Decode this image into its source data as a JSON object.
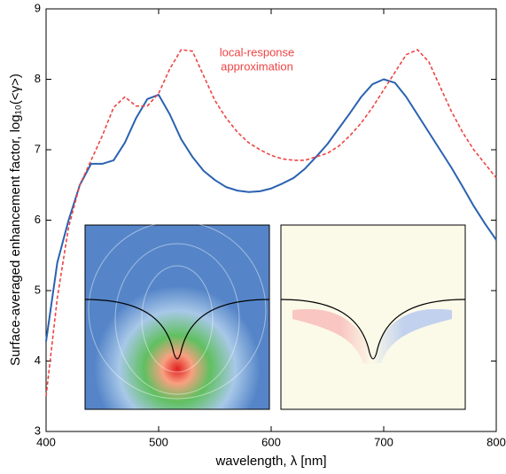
{
  "chart_data": {
    "type": "line",
    "x_label": "wavelength, λ [nm]",
    "y_label": "Surface-averaged enhancement factor, log₁₀(<γ>)",
    "annotation": [
      "local-response",
      "approximation"
    ],
    "x": [
      400,
      410,
      420,
      430,
      440,
      450,
      460,
      470,
      480,
      490,
      500,
      510,
      520,
      530,
      540,
      550,
      560,
      570,
      580,
      590,
      600,
      610,
      620,
      630,
      640,
      650,
      660,
      670,
      680,
      690,
      700,
      710,
      720,
      730,
      740,
      750,
      760,
      770,
      780,
      790,
      800
    ],
    "series": [
      {
        "color": "#2a62b0",
        "dash": false,
        "values": [
          4.28,
          5.4,
          6.0,
          6.5,
          6.8,
          6.8,
          6.85,
          7.1,
          7.45,
          7.72,
          7.78,
          7.5,
          7.15,
          6.9,
          6.7,
          6.57,
          6.47,
          6.42,
          6.4,
          6.41,
          6.45,
          6.52,
          6.6,
          6.73,
          6.9,
          7.08,
          7.3,
          7.52,
          7.75,
          7.93,
          8.0,
          7.95,
          7.75,
          7.5,
          7.25,
          7.0,
          6.75,
          6.48,
          6.2,
          5.95,
          5.72
        ]
      },
      {
        "color": "#ee4444",
        "dash": true,
        "values": [
          3.5,
          4.9,
          5.9,
          6.5,
          6.85,
          7.2,
          7.6,
          7.75,
          7.62,
          7.62,
          7.8,
          8.15,
          8.42,
          8.4,
          8.05,
          7.7,
          7.45,
          7.25,
          7.1,
          7.0,
          6.92,
          6.87,
          6.85,
          6.85,
          6.9,
          6.95,
          7.05,
          7.2,
          7.38,
          7.6,
          7.85,
          8.1,
          8.35,
          8.42,
          8.25,
          7.9,
          7.55,
          7.25,
          7.0,
          6.8,
          6.6
        ]
      }
    ],
    "xlim": [
      400,
      800
    ],
    "xticks": [
      400,
      500,
      600,
      700,
      800
    ],
    "ylim": [
      3,
      9
    ],
    "yticks": [
      3,
      4,
      5,
      6,
      7,
      8,
      9
    ]
  }
}
